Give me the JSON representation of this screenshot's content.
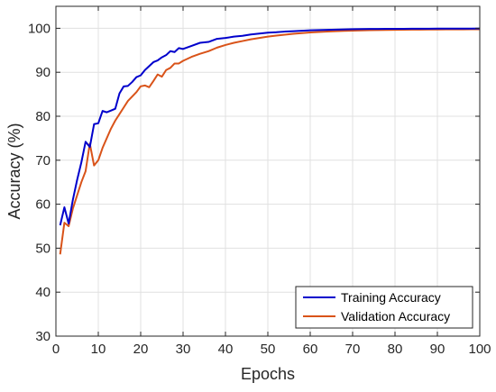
{
  "chart_data": {
    "type": "line",
    "title": "",
    "xlabel": "Epochs",
    "ylabel": "Accuracy (%)",
    "xlim": [
      0,
      100
    ],
    "ylim": [
      30,
      105
    ],
    "xticks": [
      0,
      10,
      20,
      30,
      40,
      50,
      60,
      70,
      80,
      90,
      100
    ],
    "yticks": [
      30,
      40,
      50,
      60,
      70,
      80,
      90,
      100
    ],
    "grid": true,
    "legend_position": "bottom-right",
    "colors": {
      "training": "#0000CC",
      "validation": "#D95319",
      "grid": "#e0e0e0",
      "axis": "#262626"
    },
    "series": [
      {
        "name": "Training Accuracy",
        "color": "#0000CC",
        "x": [
          1,
          2,
          3,
          4,
          5,
          6,
          7,
          8,
          9,
          10,
          11,
          12,
          13,
          14,
          15,
          16,
          17,
          18,
          19,
          20,
          21,
          22,
          23,
          24,
          25,
          26,
          27,
          28,
          29,
          30,
          32,
          34,
          36,
          38,
          40,
          42,
          44,
          46,
          48,
          50,
          52,
          54,
          56,
          58,
          60,
          62,
          64,
          66,
          68,
          70,
          72,
          74,
          76,
          78,
          80,
          82,
          84,
          86,
          88,
          90,
          92,
          94,
          96,
          98,
          100
        ],
        "y": [
          55.2,
          59.3,
          55.6,
          61.0,
          65.5,
          69.5,
          74.2,
          73.0,
          78.2,
          78.4,
          81.2,
          80.9,
          81.3,
          81.7,
          85.2,
          86.8,
          86.9,
          87.8,
          88.9,
          89.3,
          90.5,
          91.4,
          92.3,
          92.7,
          93.4,
          93.9,
          94.8,
          94.6,
          95.5,
          95.3,
          96.0,
          96.7,
          96.9,
          97.6,
          97.8,
          98.1,
          98.3,
          98.6,
          98.8,
          99.0,
          99.1,
          99.25,
          99.35,
          99.45,
          99.55,
          99.6,
          99.65,
          99.7,
          99.75,
          99.8,
          99.82,
          99.84,
          99.85,
          99.87,
          99.88,
          99.89,
          99.9,
          99.9,
          99.91,
          99.92,
          99.92,
          99.93,
          99.93,
          99.94,
          99.95
        ]
      },
      {
        "name": "Validation Accuracy",
        "color": "#D95319",
        "x": [
          1,
          2,
          3,
          4,
          5,
          6,
          7,
          8,
          9,
          10,
          11,
          12,
          13,
          14,
          15,
          16,
          17,
          18,
          19,
          20,
          21,
          22,
          23,
          24,
          25,
          26,
          27,
          28,
          29,
          30,
          32,
          34,
          36,
          38,
          40,
          42,
          44,
          46,
          48,
          50,
          52,
          54,
          56,
          58,
          60,
          62,
          64,
          66,
          68,
          70,
          72,
          74,
          76,
          78,
          80,
          82,
          84,
          86,
          88,
          90,
          92,
          94,
          96,
          98,
          100
        ],
        "y": [
          48.6,
          55.8,
          55.0,
          59.0,
          62.0,
          65.0,
          67.5,
          73.8,
          68.8,
          70.0,
          72.8,
          75.0,
          77.2,
          79.0,
          80.5,
          82.0,
          83.5,
          84.5,
          85.5,
          86.8,
          87.0,
          86.6,
          88.0,
          89.5,
          89.0,
          90.5,
          91.0,
          92.0,
          92.0,
          92.6,
          93.5,
          94.2,
          94.8,
          95.6,
          96.2,
          96.7,
          97.1,
          97.5,
          97.8,
          98.1,
          98.35,
          98.55,
          98.75,
          98.9,
          99.05,
          99.15,
          99.25,
          99.35,
          99.42,
          99.48,
          99.52,
          99.56,
          99.6,
          99.63,
          99.65,
          99.67,
          99.69,
          99.7,
          99.72,
          99.73,
          99.74,
          99.75,
          99.76,
          99.77,
          99.78
        ]
      }
    ]
  }
}
